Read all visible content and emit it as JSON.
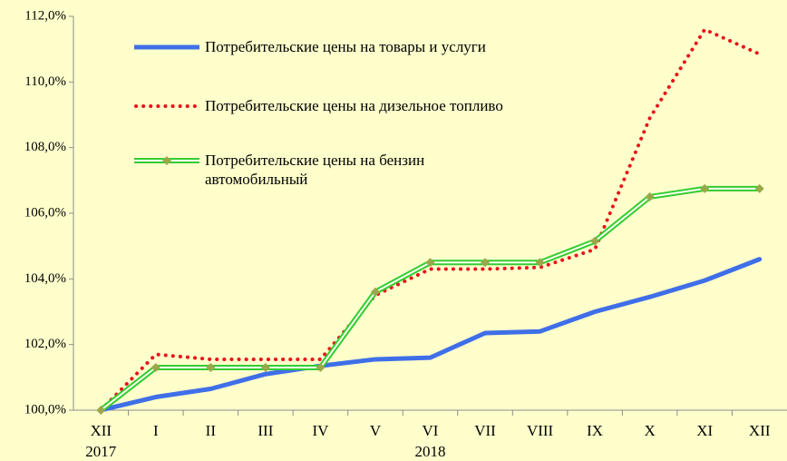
{
  "chart_data": {
    "type": "line",
    "categories": [
      "XII",
      "I",
      "II",
      "III",
      "IV",
      "V",
      "VI",
      "VII",
      "VIII",
      "IX",
      "X",
      "XI",
      "XII"
    ],
    "year_labels": [
      {
        "text": "2017",
        "category": 0
      },
      {
        "text": "2018",
        "category": 6
      }
    ],
    "series": [
      {
        "name": "Потребительские цены на товары и услуги",
        "color": "#3f6fe8",
        "style": "solid",
        "values": [
          100,
          100.4,
          100.65,
          101.1,
          101.35,
          101.55,
          101.6,
          102.35,
          102.4,
          103.0,
          103.45,
          103.95,
          104.6
        ]
      },
      {
        "name": "Потребительские цены на дизельное топливо",
        "color": "#e8141a",
        "style": "dotted",
        "values": [
          100,
          101.7,
          101.55,
          101.55,
          101.55,
          103.5,
          104.3,
          104.3,
          104.35,
          104.9,
          108.9,
          111.6,
          110.85
        ]
      },
      {
        "name": "Потребительские цены на бензин автомобильный",
        "color": "#33cc33",
        "style": "double",
        "marker_color": "#9aa84a",
        "values": [
          100,
          101.3,
          101.3,
          101.3,
          101.3,
          103.6,
          104.5,
          104.5,
          104.5,
          105.15,
          106.5,
          106.75,
          106.75
        ]
      }
    ],
    "ylim": [
      100,
      112
    ],
    "yticks": [
      {
        "value": 100,
        "label": "100,0%"
      },
      {
        "value": 102,
        "label": "102,0%"
      },
      {
        "value": 104,
        "label": "104,0%"
      },
      {
        "value": 106,
        "label": "106,0%"
      },
      {
        "value": 108,
        "label": "108,0%"
      },
      {
        "value": 110,
        "label": "110,0%"
      },
      {
        "value": 112,
        "label": "112,0%"
      }
    ],
    "grid": false,
    "legend": "upper-left"
  }
}
